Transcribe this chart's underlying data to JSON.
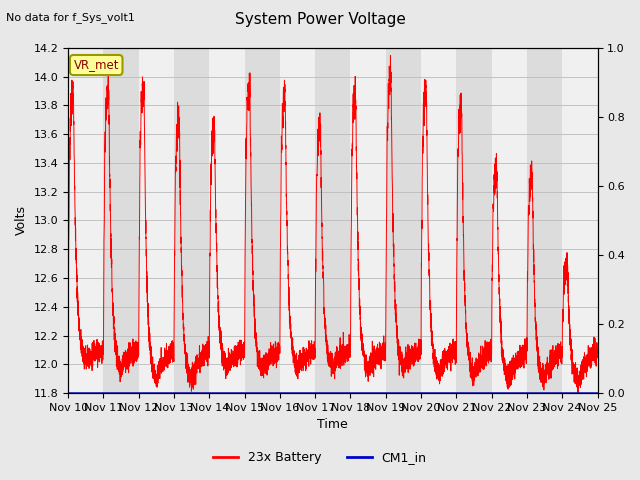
{
  "title": "System Power Voltage",
  "subtitle": "No data for f_Sys_volt1",
  "xlabel": "Time",
  "ylabel_left": "Volts",
  "ylim_left": [
    11.8,
    14.2
  ],
  "ylim_right": [
    0.0,
    1.0
  ],
  "yticks_left": [
    11.8,
    12.0,
    12.2,
    12.4,
    12.6,
    12.8,
    13.0,
    13.2,
    13.4,
    13.6,
    13.8,
    14.0,
    14.2
  ],
  "yticks_right": [
    0.0,
    0.2,
    0.4,
    0.6,
    0.8,
    1.0
  ],
  "xtick_labels": [
    "Nov 10",
    "Nov 11",
    "Nov 12",
    "Nov 13",
    "Nov 14",
    "Nov 15",
    "Nov 16",
    "Nov 17",
    "Nov 18",
    "Nov 19",
    "Nov 20",
    "Nov 21",
    "Nov 22",
    "Nov 23",
    "Nov 24",
    "Nov 25"
  ],
  "vr_met_label": "VR_met",
  "legend_entries": [
    "23x Battery",
    "CM1_in"
  ],
  "legend_colors": [
    "#ff0000",
    "#0000cc"
  ],
  "battery_color": "#ff0000",
  "cm1_color": "#0000bb",
  "background_color": "#e8e8e8",
  "plot_bg_color_light": "#f0f0f0",
  "plot_bg_color_dark": "#dcdcdc",
  "grid_color": "#bbbbbb",
  "title_fontsize": 11,
  "subtitle_fontsize": 8,
  "axis_fontsize": 9,
  "tick_fontsize": 8,
  "peak_heights": [
    13.91,
    13.93,
    13.93,
    13.71,
    13.63,
    13.93,
    13.89,
    13.65,
    13.87,
    14.01,
    13.93,
    13.79,
    13.35,
    13.32,
    12.67
  ],
  "min_heights": [
    12.02,
    11.97,
    11.87,
    11.87,
    11.97,
    11.95,
    11.97,
    11.97,
    11.95,
    11.97,
    11.92,
    11.9,
    11.88,
    11.88,
    11.88
  ]
}
